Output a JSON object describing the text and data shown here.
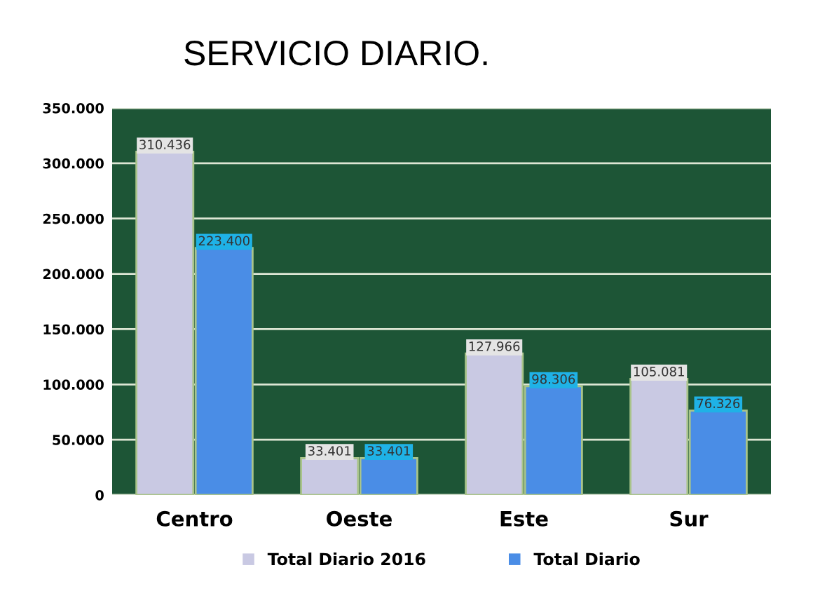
{
  "chart_data": {
    "type": "bar",
    "title": "SERVICIO DIARIO.",
    "categories": [
      "Centro",
      "Oeste",
      "Este",
      "Sur"
    ],
    "series": [
      {
        "name": "Total Diario 2016",
        "color": "#c9c9e3",
        "values": [
          310436,
          33401,
          127966,
          105081
        ],
        "value_labels": [
          "310.436",
          "33.401",
          "127.966",
          "105.081"
        ]
      },
      {
        "name": "Total Diario",
        "color": "#4a8de6",
        "values": [
          223400,
          33401,
          98306,
          76326
        ],
        "value_labels": [
          "223.400",
          "33.401",
          "98.306",
          "76.326"
        ]
      }
    ],
    "ylim": [
      0,
      350000
    ],
    "yticks": [
      {
        "value": 0,
        "label": "0"
      },
      {
        "value": 50000,
        "label": "50.000"
      },
      {
        "value": 100000,
        "label": "100.000"
      },
      {
        "value": 150000,
        "label": "150.000"
      },
      {
        "value": 200000,
        "label": "200.000"
      },
      {
        "value": 250000,
        "label": "250.000"
      },
      {
        "value": 300000,
        "label": "300.000"
      },
      {
        "value": 350000,
        "label": "350.000"
      }
    ],
    "grid": "y",
    "legend": "bottom"
  }
}
